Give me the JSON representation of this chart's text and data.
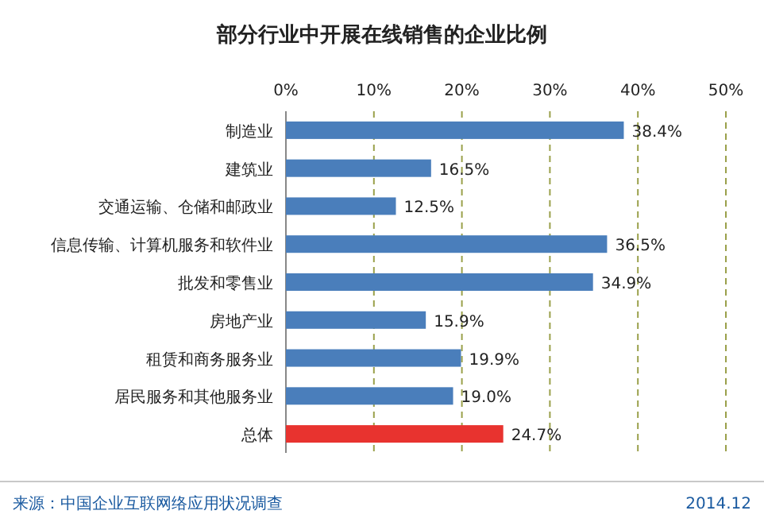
{
  "chart_data": {
    "type": "bar",
    "orientation": "horizontal",
    "title": "部分行业中开展在线销售的企业比例",
    "categories": [
      "制造业",
      "建筑业",
      "交通运输、仓储和邮政业",
      "信息传输、计算机服务和软件业",
      "批发和零售业",
      "房地产业",
      "租赁和商务服务业",
      "居民服务和其他服务业",
      "总体"
    ],
    "values": [
      38.4,
      16.5,
      12.5,
      36.5,
      34.9,
      15.9,
      19.9,
      19.0,
      24.7
    ],
    "value_labels": [
      "38.4%",
      "16.5%",
      "12.5%",
      "36.5%",
      "34.9%",
      "15.9%",
      "19.9%",
      "19.0%",
      "24.7%"
    ],
    "colors": [
      "#4a7ebb",
      "#4a7ebb",
      "#4a7ebb",
      "#4a7ebb",
      "#4a7ebb",
      "#4a7ebb",
      "#4a7ebb",
      "#4a7ebb",
      "#e8332f"
    ],
    "xlim": [
      0,
      50
    ],
    "xticks": [
      {
        "value": 0,
        "label": "0%"
      },
      {
        "value": 10,
        "label": "10%"
      },
      {
        "value": 20,
        "label": "20%"
      },
      {
        "value": 30,
        "label": "30%"
      },
      {
        "value": 40,
        "label": "40%"
      },
      {
        "value": 50,
        "label": "50%"
      }
    ],
    "grid": "x",
    "annotations": [
      "来源：中国企业互联网络应用状况调查",
      "2014.12"
    ]
  }
}
